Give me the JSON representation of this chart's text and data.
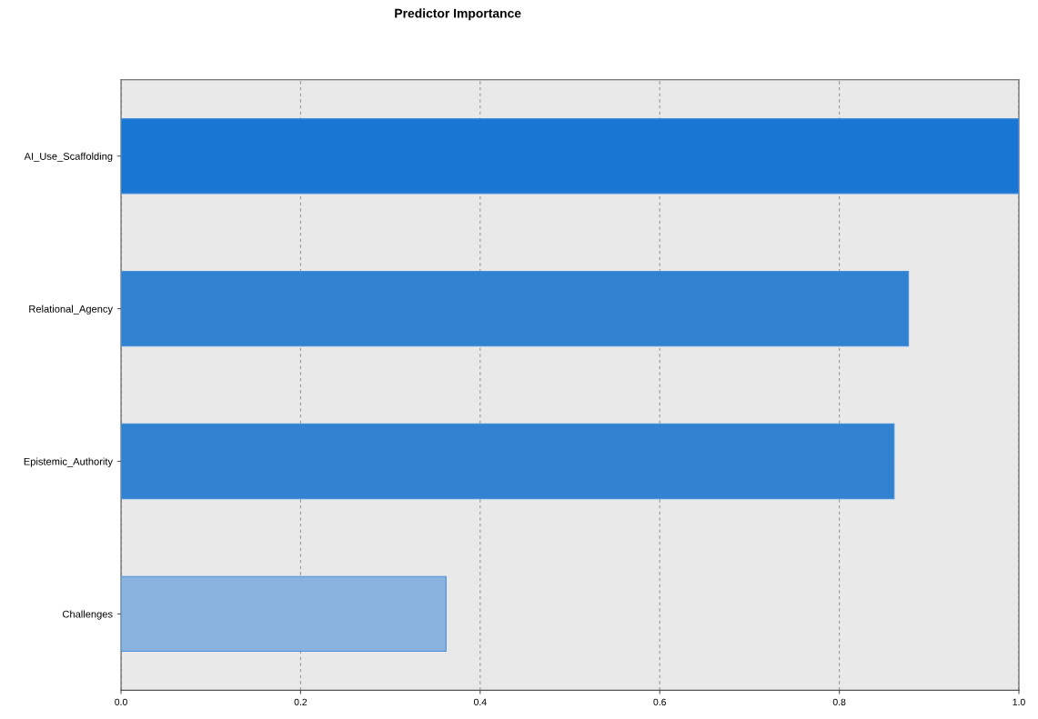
{
  "chart_data": {
    "type": "bar",
    "orientation": "horizontal",
    "title": "Predictor Importance",
    "categories": [
      "AI_Use_Scaffolding",
      "Relational_Agency",
      "Epistemic_Authority",
      "Challenges"
    ],
    "values": [
      1.0,
      0.877,
      0.861,
      0.362
    ],
    "colors": [
      "#1976d2",
      "#3183d2",
      "#3183d2",
      "#89b2de"
    ],
    "xlim": [
      0.0,
      1.0
    ],
    "xticks": [
      {
        "value": 0,
        "label": "0.0"
      },
      {
        "value": 0.2,
        "label": "0.2"
      },
      {
        "value": 0.4,
        "label": "0.4"
      },
      {
        "value": 0.6,
        "label": "0.6"
      },
      {
        "value": 0.8,
        "label": "0.8"
      },
      {
        "value": 1.0,
        "label": "1.0"
      }
    ],
    "grid": "x",
    "line_style": "dashed"
  }
}
